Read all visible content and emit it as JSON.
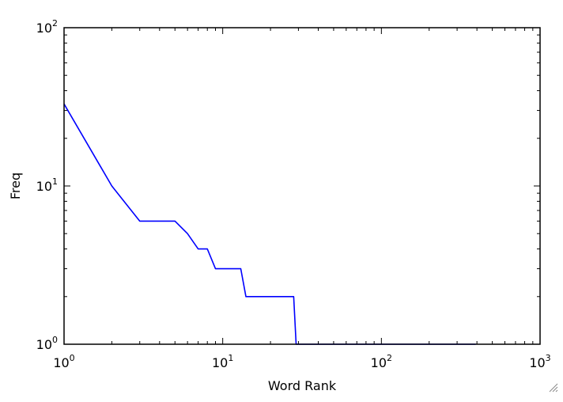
{
  "chart_data": {
    "type": "line",
    "title": "",
    "xlabel": "Word Rank",
    "ylabel": "Freq",
    "xscale": "log",
    "yscale": "log",
    "xlim": [
      1,
      1000
    ],
    "ylim": [
      1,
      100
    ],
    "grid": false,
    "line_color": "#0000ff",
    "x_ticks": [
      {
        "base": "10",
        "exp": "0",
        "value": 1
      },
      {
        "base": "10",
        "exp": "1",
        "value": 10
      },
      {
        "base": "10",
        "exp": "2",
        "value": 100
      },
      {
        "base": "10",
        "exp": "3",
        "value": 1000
      }
    ],
    "y_ticks": [
      {
        "base": "10",
        "exp": "0",
        "value": 1
      },
      {
        "base": "10",
        "exp": "1",
        "value": 10
      },
      {
        "base": "10",
        "exp": "2",
        "value": 100
      }
    ],
    "series": [
      {
        "points": [
          [
            1,
            33
          ],
          [
            2,
            10
          ],
          [
            3,
            6
          ],
          [
            4,
            6
          ],
          [
            5,
            6
          ],
          [
            6,
            5
          ],
          [
            7,
            4
          ],
          [
            8,
            4
          ],
          [
            9,
            3
          ],
          [
            10,
            3
          ],
          [
            11,
            3
          ],
          [
            12,
            3
          ],
          [
            13,
            3
          ],
          [
            14,
            2
          ],
          [
            20,
            2
          ],
          [
            28,
            2
          ],
          [
            29,
            1
          ],
          [
            100,
            1
          ],
          [
            393,
            1
          ]
        ]
      }
    ]
  }
}
